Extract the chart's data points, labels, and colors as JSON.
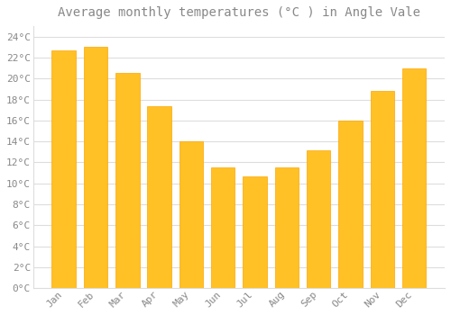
{
  "title": "Average monthly temperatures (°C ) in Angle Vale",
  "months": [
    "Jan",
    "Feb",
    "Mar",
    "Apr",
    "May",
    "Jun",
    "Jul",
    "Aug",
    "Sep",
    "Oct",
    "Nov",
    "Dec"
  ],
  "values": [
    22.7,
    23.0,
    20.5,
    17.4,
    14.0,
    11.5,
    10.7,
    11.5,
    13.2,
    16.0,
    18.8,
    21.0
  ],
  "bar_color": "#FFC125",
  "bar_edge_color": "#FFA500",
  "background_color": "#ffffff",
  "grid_color": "#dddddd",
  "text_color": "#888888",
  "ylim": [
    0,
    25
  ],
  "ytick_step": 2,
  "title_fontsize": 10,
  "tick_fontsize": 8,
  "font_family": "monospace",
  "bar_width": 0.75
}
